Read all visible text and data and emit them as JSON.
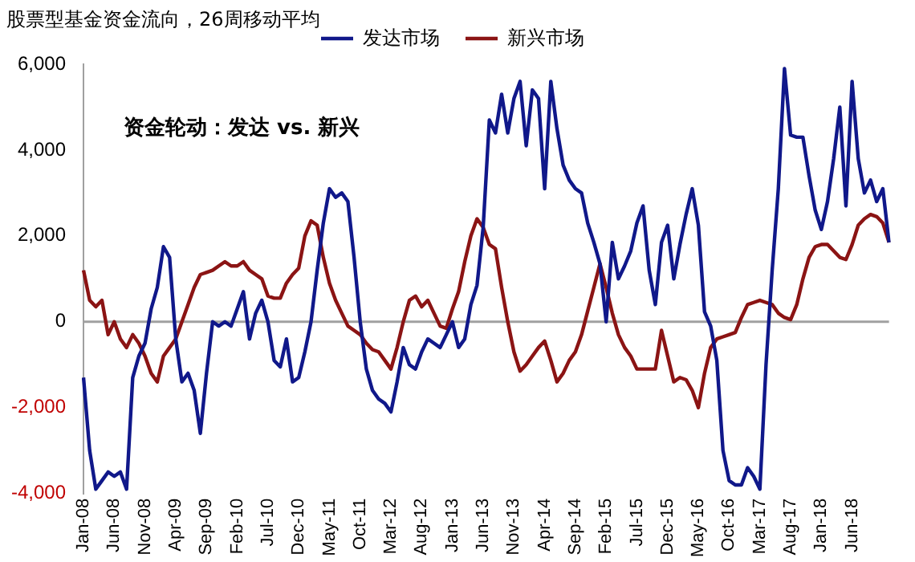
{
  "chart_data": {
    "type": "line",
    "title": "股票型基金资金流向，26周移动平均",
    "annotations": [
      "资金轮动：发达 vs. 新兴"
    ],
    "categories": [
      "Jan-08",
      null,
      null,
      null,
      null,
      "Jun-08",
      null,
      null,
      null,
      null,
      "Nov-08",
      null,
      null,
      null,
      null,
      "Apr-09",
      null,
      null,
      null,
      null,
      "Sep-09",
      null,
      null,
      null,
      null,
      "Feb-10",
      null,
      null,
      null,
      null,
      "Jul-10",
      null,
      null,
      null,
      null,
      "Dec-10",
      null,
      null,
      null,
      null,
      "May-11",
      null,
      null,
      null,
      null,
      "Oct-11",
      null,
      null,
      null,
      null,
      "Mar-12",
      null,
      null,
      null,
      null,
      "Aug-12",
      null,
      null,
      null,
      null,
      "Jan-13",
      null,
      null,
      null,
      null,
      "Jun-13",
      null,
      null,
      null,
      null,
      "Nov-13",
      null,
      null,
      null,
      null,
      "Apr-14",
      null,
      null,
      null,
      null,
      "Sep-14",
      null,
      null,
      null,
      null,
      "Feb-15",
      null,
      null,
      null,
      null,
      "Jul-15",
      null,
      null,
      null,
      null,
      "Dec-15",
      null,
      null,
      null,
      null,
      "May-16",
      null,
      null,
      null,
      null,
      "Oct-16",
      null,
      null,
      null,
      null,
      "Mar-17",
      null,
      null,
      null,
      null,
      "Aug-17",
      null,
      null,
      null,
      null,
      "Jan-18",
      null,
      null,
      null,
      null,
      "Jun-18",
      null,
      null,
      null,
      null,
      null,
      null
    ],
    "series": [
      {
        "name": "发达市场",
        "color": "#10188a",
        "values": [
          -1300,
          -3000,
          -3900,
          -3700,
          -3500,
          -3600,
          -3500,
          -3900,
          -1300,
          -800,
          -500,
          300,
          800,
          1750,
          1500,
          -400,
          -1400,
          -1200,
          -1600,
          -2600,
          -1200,
          0,
          -100,
          0,
          -100,
          300,
          700,
          -400,
          200,
          500,
          0,
          -900,
          -1050,
          -400,
          -1400,
          -1300,
          -700,
          0,
          1200,
          2300,
          3100,
          2900,
          3000,
          2800,
          1500,
          0,
          -1100,
          -1600,
          -1800,
          -1900,
          -2100,
          -1400,
          -600,
          -1000,
          -1100,
          -700,
          -400,
          -500,
          -600,
          -300,
          0,
          -600,
          -400,
          400,
          850,
          2200,
          4700,
          4400,
          5300,
          4400,
          5200,
          5600,
          4100,
          5400,
          5200,
          3100,
          5600,
          4500,
          3650,
          3300,
          3100,
          3000,
          2300,
          1850,
          1350,
          0,
          1850,
          1000,
          1300,
          1650,
          2300,
          2700,
          1200,
          400,
          1850,
          2250,
          1000,
          1800,
          2500,
          3100,
          2250,
          230,
          -100,
          -900,
          -3000,
          -3700,
          -3800,
          -3800,
          -3400,
          -3600,
          -3900,
          -1000,
          1200,
          3100,
          5900,
          4350,
          4300,
          4300,
          3400,
          2600,
          2150,
          2800,
          3800,
          5000,
          2700,
          5600,
          3800,
          3000,
          3300,
          2800,
          3100,
          1850
        ]
      },
      {
        "name": "新兴市场",
        "color": "#8b1414",
        "values": [
          1200,
          500,
          350,
          500,
          -300,
          0,
          -400,
          -600,
          -300,
          -500,
          -800,
          -1200,
          -1400,
          -800,
          -600,
          -400,
          0,
          400,
          800,
          1100,
          1150,
          1200,
          1300,
          1400,
          1300,
          1300,
          1400,
          1200,
          1100,
          1000,
          600,
          550,
          550,
          900,
          1100,
          1250,
          2000,
          2350,
          2250,
          1500,
          900,
          500,
          200,
          -100,
          -200,
          -300,
          -500,
          -650,
          -700,
          -900,
          -1100,
          -600,
          0,
          500,
          600,
          350,
          500,
          200,
          -100,
          -150,
          300,
          700,
          1400,
          2000,
          2400,
          2200,
          1800,
          1700,
          800,
          0,
          -700,
          -1150,
          -1000,
          -800,
          -600,
          -450,
          -900,
          -1400,
          -1200,
          -900,
          -700,
          -300,
          250,
          800,
          1350,
          800,
          200,
          -300,
          -600,
          -800,
          -1100,
          -1100,
          -1100,
          -1100,
          -200,
          -800,
          -1400,
          -1300,
          -1350,
          -1600,
          -2000,
          -1200,
          -600,
          -400,
          -350,
          -300,
          -250,
          100,
          400,
          450,
          500,
          450,
          400,
          200,
          100,
          50,
          400,
          1000,
          1500,
          1750,
          1800,
          1800,
          1650,
          1500,
          1450,
          1800,
          2250,
          2400,
          2500,
          2450,
          2300,
          1850
        ]
      }
    ],
    "ylim": [
      -4000,
      6000
    ],
    "yticks": [
      {
        "value": -4000,
        "label": "-4,000"
      },
      {
        "value": -2000,
        "label": "-2,000"
      },
      {
        "value": 0,
        "label": "0"
      },
      {
        "value": 2000,
        "label": "2,000"
      },
      {
        "value": 4000,
        "label": "4,000"
      },
      {
        "value": 6000,
        "label": "6,000"
      }
    ],
    "ref_lines": [
      {
        "axis": "y",
        "value": 0,
        "color": "#a0a0a0"
      }
    ],
    "grid": false,
    "legend": "top",
    "marker": "none",
    "line_style": "solid"
  }
}
